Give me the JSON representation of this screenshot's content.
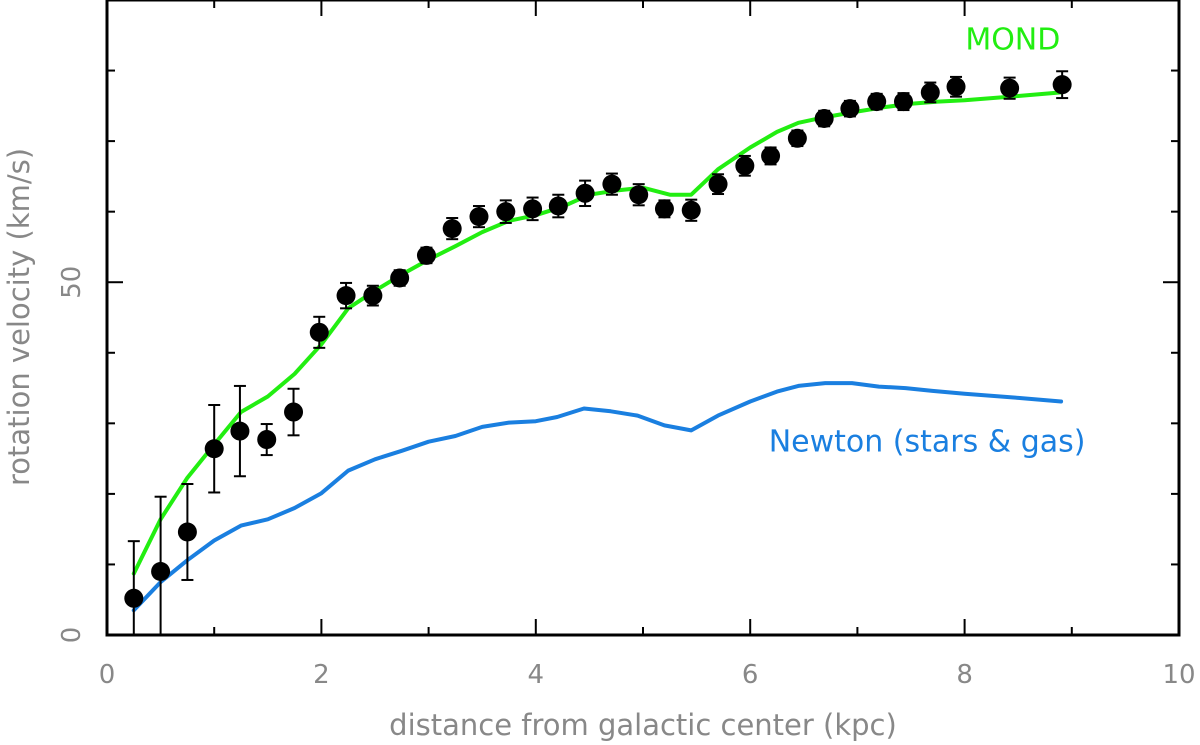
{
  "chart_data": {
    "type": "scatter",
    "title": "",
    "xlabel": "distance from galactic center (kpc)",
    "ylabel": "rotation velocity (km/s)",
    "xlim": [
      0,
      10
    ],
    "ylim": [
      0,
      90
    ],
    "x_ticks": [
      0,
      2,
      4,
      6,
      8,
      10
    ],
    "x_tick_labels": [
      "0",
      "2",
      "4",
      "6",
      "8",
      "10"
    ],
    "x_minor_ticks": [
      1,
      3,
      5,
      7,
      9
    ],
    "y_ticks": [
      0,
      50
    ],
    "y_tick_labels": [
      "0",
      "50"
    ],
    "y_minor_ticks": [
      10,
      20,
      30,
      40,
      60,
      70,
      80
    ],
    "grid": false,
    "observed": {
      "name": "observed",
      "color": "#000000",
      "x": [
        0.25,
        0.5,
        0.75,
        1.0,
        1.24,
        1.49,
        1.74,
        1.98,
        2.23,
        2.48,
        2.73,
        2.98,
        3.22,
        3.47,
        3.72,
        3.97,
        4.21,
        4.46,
        4.71,
        4.96,
        5.2,
        5.45,
        5.7,
        5.95,
        6.19,
        6.44,
        6.69,
        6.93,
        7.18,
        7.43,
        7.68,
        7.92,
        8.42,
        8.91
      ],
      "y": [
        5.2,
        9.0,
        14.6,
        26.4,
        28.9,
        27.7,
        31.6,
        42.9,
        48.1,
        48.1,
        50.6,
        53.8,
        57.6,
        59.3,
        60.0,
        60.4,
        60.8,
        62.6,
        63.9,
        62.4,
        60.4,
        60.2,
        63.9,
        66.5,
        67.9,
        70.4,
        73.2,
        74.6,
        75.6,
        75.6,
        76.9,
        77.7,
        77.5,
        78.0
      ],
      "err": [
        8.1,
        10.6,
        6.8,
        6.2,
        6.4,
        2.2,
        3.3,
        2.2,
        1.8,
        1.4,
        1.1,
        1.1,
        1.5,
        1.5,
        1.6,
        1.6,
        1.6,
        1.8,
        1.5,
        1.5,
        1.2,
        1.5,
        1.4,
        1.4,
        1.2,
        1.1,
        1.1,
        1.1,
        1.1,
        1.2,
        1.4,
        1.4,
        1.5,
        1.9
      ]
    },
    "series": [
      {
        "name": "MOND",
        "color": "#22ee11",
        "x": [
          0.25,
          0.5,
          0.75,
          1.0,
          1.25,
          1.5,
          1.75,
          2.0,
          2.25,
          2.5,
          2.75,
          3.0,
          3.25,
          3.5,
          3.75,
          4.0,
          4.25,
          4.5,
          4.75,
          5.0,
          5.25,
          5.45,
          5.7,
          6.0,
          6.25,
          6.45,
          6.7,
          7.0,
          7.25,
          7.5,
          7.75,
          8.0,
          8.5,
          8.9
        ],
        "values": [
          8.7,
          16.4,
          22.3,
          27.0,
          31.6,
          33.8,
          37.0,
          41.2,
          46.3,
          48.8,
          51.1,
          53.2,
          55.1,
          57.1,
          58.7,
          59.5,
          60.7,
          62.4,
          63.0,
          63.4,
          62.4,
          62.4,
          66.0,
          69.1,
          71.3,
          72.6,
          73.4,
          74.2,
          74.8,
          75.3,
          75.6,
          75.8,
          76.4,
          76.9
        ]
      },
      {
        "name": "Newton (stars & gas)",
        "color": "#1a7fe0",
        "x": [
          0.25,
          0.5,
          0.75,
          1.0,
          1.25,
          1.5,
          1.75,
          2.0,
          2.25,
          2.5,
          2.75,
          3.0,
          3.25,
          3.5,
          3.75,
          4.0,
          4.2,
          4.45,
          4.7,
          4.95,
          5.2,
          5.45,
          5.7,
          6.0,
          6.25,
          6.45,
          6.7,
          6.95,
          7.2,
          7.45,
          7.7,
          8.0,
          8.5,
          8.9
        ],
        "values": [
          3.5,
          7.5,
          10.6,
          13.4,
          15.5,
          16.4,
          18.0,
          20.1,
          23.3,
          24.9,
          26.1,
          27.4,
          28.2,
          29.5,
          30.1,
          30.3,
          30.9,
          32.1,
          31.7,
          31.1,
          29.7,
          29.0,
          31.1,
          33.1,
          34.5,
          35.3,
          35.7,
          35.7,
          35.2,
          35.0,
          34.6,
          34.2,
          33.6,
          33.1
        ]
      }
    ],
    "annotations": [
      {
        "text": "MOND",
        "x": 8.45,
        "y": 83.0,
        "color": "#22ee11"
      },
      {
        "text": "Newton (stars & gas)",
        "x": 7.65,
        "y": 26.0,
        "color": "#1a7fe0"
      }
    ]
  }
}
